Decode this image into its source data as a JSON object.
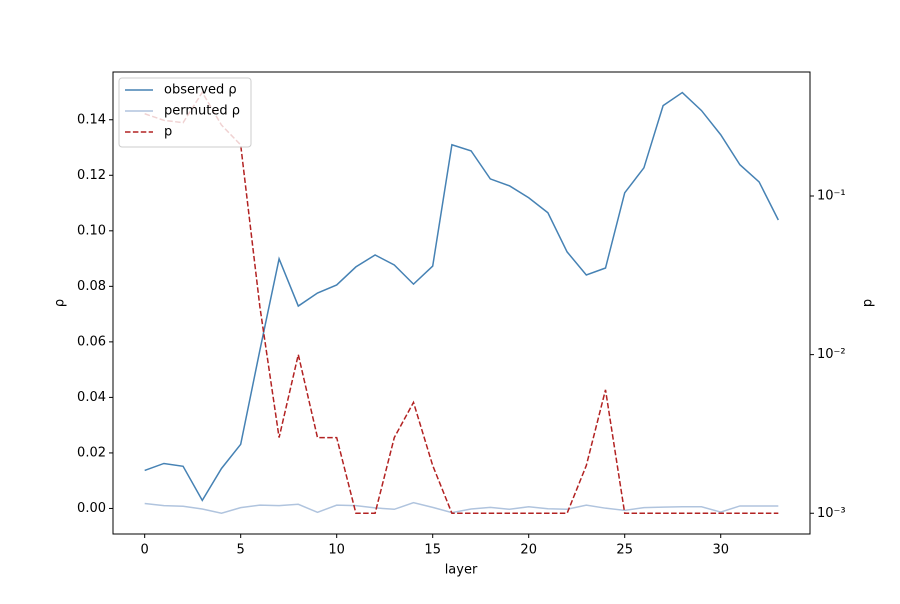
{
  "chart_data": {
    "type": "line",
    "xlabel": "layer",
    "ylabel": "ρ",
    "y2label": "p",
    "x": [
      0,
      1,
      2,
      3,
      4,
      5,
      6,
      7,
      8,
      9,
      10,
      11,
      12,
      13,
      14,
      15,
      16,
      17,
      18,
      19,
      20,
      21,
      22,
      23,
      24,
      25,
      26,
      27,
      28,
      29,
      30,
      31,
      32,
      33
    ],
    "series": [
      {
        "name": "observed ρ",
        "color": "#4682b4",
        "linestyle": "solid",
        "values": [
          0.0137,
          0.0162,
          0.0152,
          0.0029,
          0.0144,
          0.0231,
          0.057,
          0.0899,
          0.0729,
          0.0776,
          0.0805,
          0.087,
          0.0913,
          0.0877,
          0.0808,
          0.0873,
          0.131,
          0.1288,
          0.1187,
          0.1162,
          0.1119,
          0.1065,
          0.0924,
          0.0841,
          0.0866,
          0.1137,
          0.1227,
          0.1451,
          0.1498,
          0.1433,
          0.1346,
          0.1238,
          0.1176,
          0.1039
        ]
      },
      {
        "name": "permuted ρ",
        "color": "#b0c4de",
        "linestyle": "solid",
        "values": [
          0.0018,
          0.001,
          0.0008,
          -0.0002,
          -0.0017,
          0.0003,
          0.0012,
          0.001,
          0.0015,
          -0.0014,
          0.0012,
          0.001,
          0.0002,
          -0.0003,
          0.0021,
          0.0004,
          -0.0015,
          -0.0002,
          0.0004,
          -0.0003,
          0.0006,
          -0.0001,
          -0.0003,
          0.0012,
          0.0001,
          -0.0007,
          0.0003,
          0.0005,
          0.0006,
          0.0006,
          -0.0013,
          0.0009,
          0.0009,
          0.0009
        ]
      },
      {
        "name": "p",
        "color": "#b22222",
        "linestyle": "dashed",
        "axis": "y2",
        "values": [
          0.33,
          0.3,
          0.29,
          0.45,
          0.28,
          0.21,
          0.02,
          0.003,
          0.01,
          0.003,
          0.003,
          0.001,
          0.001,
          0.003,
          0.005,
          0.002,
          0.001,
          0.001,
          0.001,
          0.001,
          0.001,
          0.001,
          0.001,
          0.002,
          0.006,
          0.001,
          0.001,
          0.001,
          0.001,
          0.001,
          0.001,
          0.001,
          0.001,
          0.001
        ]
      }
    ],
    "xlim": [
      -1.65,
      34.65
    ],
    "xticks": [
      0,
      5,
      10,
      15,
      20,
      25,
      30
    ],
    "ylim": [
      -0.0092,
      0.1572
    ],
    "yticks": [
      {
        "value": 0,
        "label": "0.00"
      },
      {
        "value": 0.02,
        "label": "0.02"
      },
      {
        "value": 0.04,
        "label": "0.04"
      },
      {
        "value": 0.06,
        "label": "0.06"
      },
      {
        "value": 0.08,
        "label": "0.08"
      },
      {
        "value": 0.1,
        "label": "0.10"
      },
      {
        "value": 0.12,
        "label": "0.12"
      },
      {
        "value": 0.14,
        "label": "0.14"
      }
    ],
    "y2lim": [
      0.00074,
      0.605
    ],
    "y2scale": "log",
    "y2ticks": [
      {
        "value": 0.001,
        "label": "10⁻³"
      },
      {
        "value": 0.01,
        "label": "10⁻²"
      },
      {
        "value": 0.1,
        "label": "10⁻¹"
      }
    ],
    "legend": "upper left"
  }
}
